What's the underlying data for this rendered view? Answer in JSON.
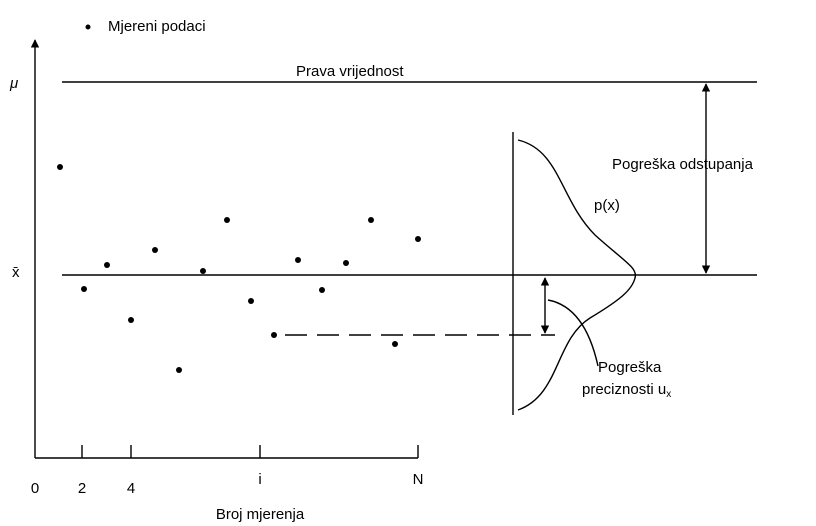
{
  "legend": "Mjereni podaci",
  "labels": {
    "mu": "μ",
    "xbar": "x̄",
    "true_value": "Prava vrijednost",
    "bias_error": "Pogreška odstupanja",
    "pdf": "p(x)",
    "precision_error": {
      "line1": "Pogreška",
      "line2": "preciznosti u",
      "subscript": "x"
    }
  },
  "x_axis": {
    "ticks": [
      "0",
      "2",
      "4",
      "i",
      "N"
    ],
    "label": "Broj mjerenja"
  }
}
